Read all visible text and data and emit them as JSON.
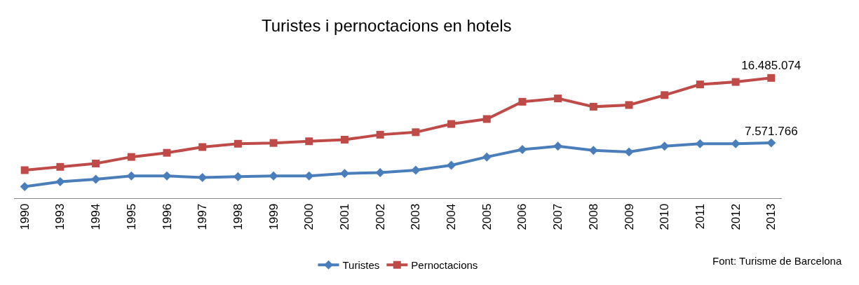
{
  "chart_data": {
    "type": "line",
    "title": "Turistes i pernoctacions en hotels",
    "categories": [
      "1990",
      "1993",
      "1994",
      "1995",
      "1996",
      "1997",
      "1998",
      "1999",
      "2000",
      "2001",
      "2002",
      "2003",
      "2004",
      "2005",
      "2006",
      "2007",
      "2008",
      "2009",
      "2010",
      "2011",
      "2012",
      "2013"
    ],
    "series": [
      {
        "name": "Turistes",
        "color": "#4a7ebb",
        "marker": "diamond",
        "values": [
          1580000,
          2260000,
          2600000,
          3050000,
          3050000,
          2830000,
          2940000,
          3050000,
          3050000,
          3390000,
          3500000,
          3840000,
          4520000,
          5650000,
          6670000,
          7120000,
          6550000,
          6330000,
          7120000,
          7460000,
          7460000,
          7571766
        ],
        "value_labels": [
          null,
          null,
          null,
          null,
          null,
          null,
          null,
          null,
          null,
          null,
          null,
          null,
          null,
          null,
          null,
          null,
          null,
          null,
          null,
          null,
          null,
          "7.571.766"
        ]
      },
      {
        "name": "Pernoctacions",
        "color": "#be4b48",
        "marker": "square",
        "values": [
          3840000,
          4290000,
          4750000,
          5650000,
          6220000,
          7010000,
          7460000,
          7570000,
          7800000,
          8020000,
          8700000,
          9040000,
          10170000,
          10850000,
          13220000,
          13670000,
          12540000,
          12770000,
          14130000,
          15590000,
          15930000,
          16485074
        ],
        "value_labels": [
          null,
          null,
          null,
          null,
          null,
          null,
          null,
          null,
          null,
          null,
          null,
          null,
          null,
          null,
          null,
          null,
          null,
          null,
          null,
          null,
          null,
          "16.485.074"
        ]
      }
    ],
    "legend": "bottom",
    "annotations": [
      "Font: Turisme de Barcelona"
    ]
  }
}
